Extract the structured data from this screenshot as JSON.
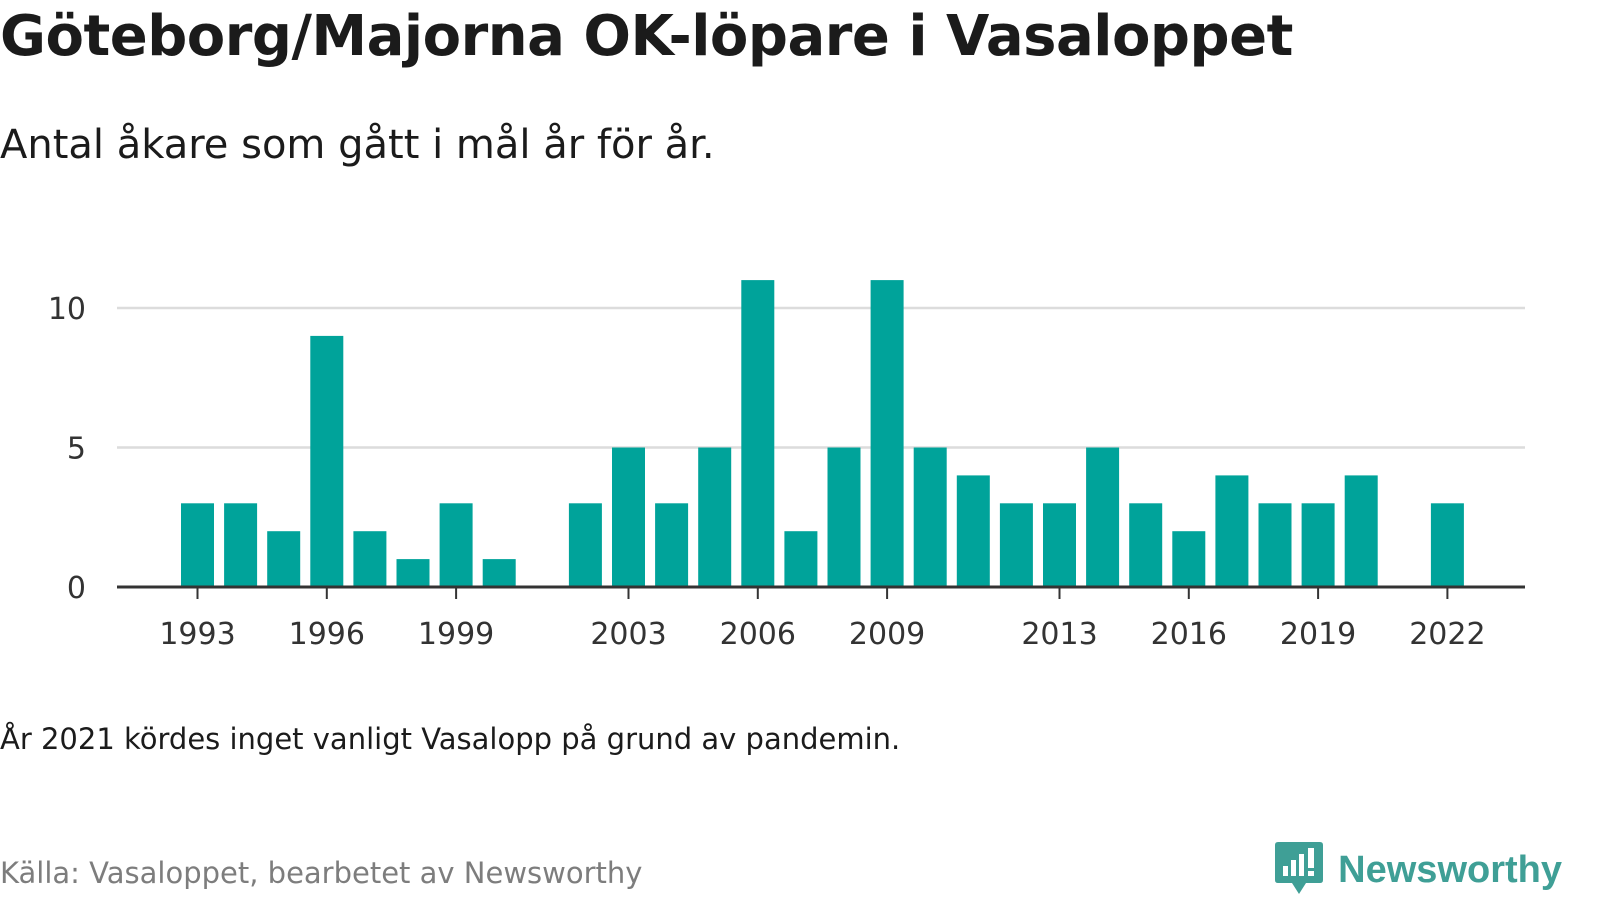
{
  "title": "Göteborg/Majorna OK-löpare i Vasaloppet",
  "subtitle": "Antal åkare som gått i mål år för år.",
  "note": "År 2021 kördes inget vanligt Vasalopp på grund av pandemin.",
  "source": "Källa: Vasaloppet, bearbetet av Newsworthy",
  "logo": {
    "text": "Newsworthy",
    "icon": "bar-chart-speech-bubble-icon",
    "color": "#3f9f96"
  },
  "colors": {
    "bar": "#00a39a",
    "grid": "#dcdcdc",
    "axis": "#333333",
    "tick_text": "#333333"
  },
  "chart_data": {
    "type": "bar",
    "x": [
      1993,
      1994,
      1995,
      1996,
      1997,
      1998,
      1999,
      2000,
      2001,
      2002,
      2003,
      2004,
      2005,
      2006,
      2007,
      2008,
      2009,
      2010,
      2011,
      2012,
      2013,
      2014,
      2015,
      2016,
      2017,
      2018,
      2019,
      2020,
      2021,
      2022
    ],
    "values": [
      3,
      3,
      2,
      9,
      2,
      1,
      3,
      1,
      0,
      3,
      5,
      3,
      5,
      11,
      2,
      5,
      11,
      5,
      4,
      3,
      3,
      5,
      3,
      2,
      4,
      3,
      3,
      4,
      0,
      3
    ],
    "x_ticks": [
      1993,
      1996,
      1999,
      2003,
      2006,
      2009,
      2013,
      2016,
      2019,
      2022
    ],
    "y_ticks": [
      0,
      5,
      10
    ],
    "ylim": [
      0,
      11
    ],
    "grid": true
  }
}
